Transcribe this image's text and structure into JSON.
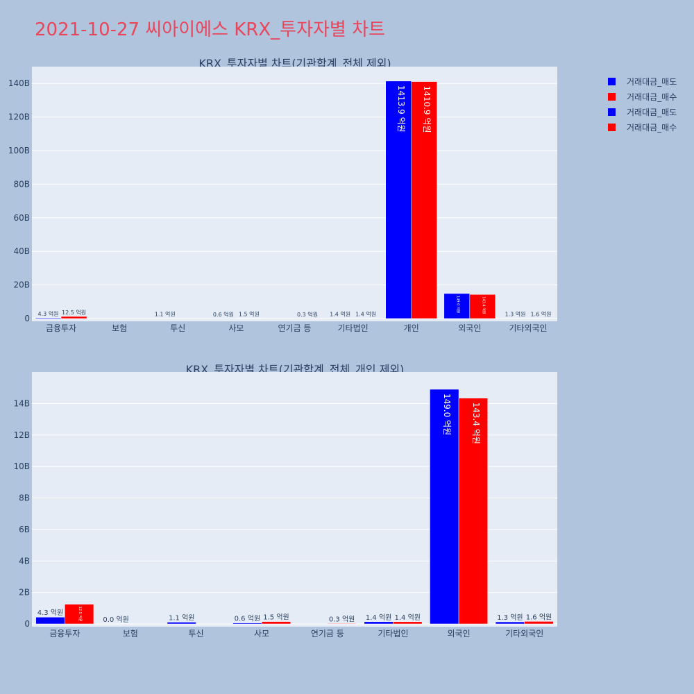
{
  "title": "2021-10-27 씨아이에스 KRX_투자자별 차트",
  "legend": [
    {
      "name": "거래대금_매도",
      "color": "#0000ff"
    },
    {
      "name": "거래대금_매수",
      "color": "#ff0000"
    },
    {
      "name": "거래대금_매도",
      "color": "#0000ff"
    },
    {
      "name": "거래대금_매수",
      "color": "#ff0000"
    }
  ],
  "chart_data": [
    {
      "type": "bar",
      "title": "KRX_투자자별 차트(기관합계_전체 제외)",
      "categories": [
        "금융투자",
        "보험",
        "투신",
        "사모",
        "연기금 등",
        "기타법인",
        "개인",
        "외국인",
        "기타외국인"
      ],
      "ylim": [
        0,
        150
      ],
      "yticks": [
        0,
        20,
        40,
        60,
        80,
        100,
        120,
        140
      ],
      "ytick_labels": [
        "0",
        "20B",
        "40B",
        "60B",
        "80B",
        "100B",
        "120B",
        "140B"
      ],
      "series": [
        {
          "name": "거래대금_매도",
          "color": "#0000ff",
          "values": [
            0.43,
            0,
            0.11,
            0.06,
            0,
            0.14,
            141.39,
            14.9,
            0.13
          ],
          "labels": [
            "4.3 억원",
            "",
            "1.1 억원",
            "0.6 억원",
            "",
            "1.4 억원",
            "1413.9 억원",
            "149.0 억원",
            "1.3 억원"
          ]
        },
        {
          "name": "거래대금_매수",
          "color": "#ff0000",
          "values": [
            1.25,
            0,
            0,
            0.15,
            0.03,
            0.14,
            141.09,
            14.34,
            0.16
          ],
          "labels": [
            "12.5 억원",
            "",
            "",
            "1.5 억원",
            "0.3 억원",
            "1.4 억원",
            "1410.9 억원",
            "143.4 억원",
            "1.6 억원"
          ]
        }
      ]
    },
    {
      "type": "bar",
      "title": "KRX_투자자별 차트(기관합계_전체_개인 제외)",
      "categories": [
        "금융투자",
        "보험",
        "투신",
        "사모",
        "연기금 등",
        "기타법인",
        "외국인",
        "기타외국인"
      ],
      "ylim": [
        0,
        16
      ],
      "yticks": [
        0,
        2,
        4,
        6,
        8,
        10,
        12,
        14
      ],
      "ytick_labels": [
        "0",
        "2B",
        "4B",
        "6B",
        "8B",
        "10B",
        "12B",
        "14B"
      ],
      "series": [
        {
          "name": "거래대금_매도",
          "color": "#0000ff",
          "values": [
            0.43,
            0,
            0.11,
            0.06,
            0,
            0.14,
            14.9,
            0.13
          ],
          "labels": [
            "4.3 억원",
            "0.0 억원",
            "1.1 억원",
            "0.6 억원",
            "",
            "1.4 억원",
            "149.0 억원",
            "1.3 억원"
          ]
        },
        {
          "name": "거래대금_매수",
          "color": "#ff0000",
          "values": [
            1.25,
            0,
            0,
            0.15,
            0.03,
            0.14,
            14.34,
            0.16
          ],
          "labels": [
            "12.5 억원",
            "",
            "",
            "1.5 억원",
            "0.3 억원",
            "1.4 억원",
            "143.4 억원",
            "1.6 억원"
          ]
        }
      ]
    }
  ]
}
